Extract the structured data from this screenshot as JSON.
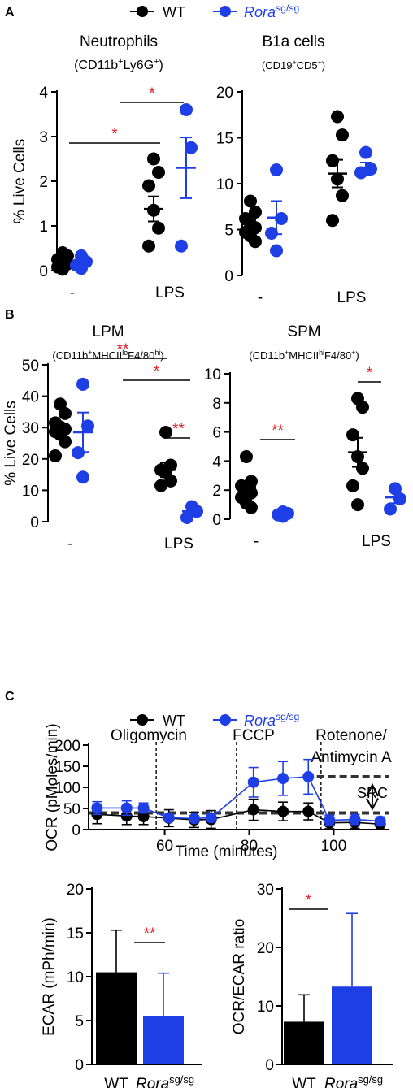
{
  "colors": {
    "wt": "#000000",
    "ko": "#1f3fe6",
    "sig": "#e8202a"
  },
  "legend": {
    "wt": "WT",
    "ko_base": "Rora",
    "ko_sup": "sg/sg"
  },
  "panels": {
    "A": "A",
    "B": "B",
    "C": "C"
  },
  "chart_data": [
    {
      "id": "neutrophils",
      "type": "scatter",
      "title": "Neutrophils",
      "subtitle": "(CD11b+Ly6G+)",
      "ylabel": "% Live Cells",
      "ylim": [
        0,
        4
      ],
      "yticks": [
        0,
        1,
        2,
        3,
        4
      ],
      "categories": [
        "-",
        "LPS"
      ],
      "series": [
        {
          "name": "WT",
          "points": [
            [
              0,
              0.4
            ],
            [
              0,
              0.33
            ],
            [
              0,
              0.25
            ],
            [
              0,
              0.2
            ],
            [
              0,
              0.15
            ],
            [
              0,
              0.08
            ],
            [
              0,
              0.03
            ],
            [
              1,
              2.5
            ],
            [
              1,
              2.2
            ],
            [
              1,
              1.9
            ],
            [
              1,
              1.35
            ],
            [
              1,
              0.95
            ],
            [
              1,
              0.55
            ]
          ],
          "mean": [
            0.2,
            1.38
          ],
          "sem": [
            0.05,
            0.28
          ]
        },
        {
          "name": "Rora sg/sg",
          "points": [
            [
              0,
              0.33
            ],
            [
              0,
              0.2
            ],
            [
              0,
              0.12
            ],
            [
              0,
              0.05
            ],
            [
              1,
              3.6
            ],
            [
              1,
              2.75
            ],
            [
              1,
              0.55
            ]
          ],
          "mean": [
            0.18,
            2.3
          ],
          "sem": [
            0.07,
            0.68
          ]
        }
      ],
      "sig": [
        {
          "label": "*",
          "from": "WT -",
          "to": "WT LPS"
        },
        {
          "label": "*",
          "from": "Rora sg/sg -",
          "to": "Rora sg/sg LPS"
        }
      ]
    },
    {
      "id": "b1a",
      "type": "scatter",
      "title": "B1a cells",
      "subtitle": "(CD19+CD5+)",
      "ylabel": "",
      "ylim": [
        0,
        20
      ],
      "yticks": [
        0,
        5,
        10,
        15,
        20
      ],
      "categories": [
        "-",
        "LPS"
      ],
      "series": [
        {
          "name": "WT",
          "points": [
            [
              0,
              8.1
            ],
            [
              0,
              6.9
            ],
            [
              0,
              6.2
            ],
            [
              0,
              5.6
            ],
            [
              0,
              5.2
            ],
            [
              0,
              4.7
            ],
            [
              0,
              4.3
            ],
            [
              0,
              3.7
            ],
            [
              1,
              17.3
            ],
            [
              1,
              15.3
            ],
            [
              1,
              12.5
            ],
            [
              1,
              10.5
            ],
            [
              1,
              8.7
            ],
            [
              1,
              6.0
            ]
          ],
          "mean": [
            5.6,
            11.1
          ],
          "sem": [
            0.5,
            1.5
          ]
        },
        {
          "name": "Rora sg/sg",
          "points": [
            [
              0,
              11.5
            ],
            [
              0,
              6.2
            ],
            [
              0,
              4.6
            ],
            [
              0,
              2.7
            ],
            [
              1,
              13.4
            ],
            [
              1,
              11.6
            ],
            [
              1,
              11.2
            ]
          ],
          "mean": [
            6.3,
            11.6
          ],
          "sem": [
            1.8,
            0.7
          ]
        }
      ],
      "sig": []
    },
    {
      "id": "lpm",
      "type": "scatter",
      "title": "LPM",
      "subtitle": "(CD11b+MHCIIloF4/80hi)",
      "ylabel": "% Live Cells",
      "ylim": [
        0,
        50
      ],
      "yticks": [
        0,
        10,
        20,
        30,
        40,
        50
      ],
      "categories": [
        "-",
        "LPS"
      ],
      "series": [
        {
          "name": "WT",
          "points": [
            [
              0,
              37.5
            ],
            [
              0,
              34.5
            ],
            [
              0,
              31.5
            ],
            [
              0,
              30.2
            ],
            [
              0,
              29.5
            ],
            [
              0,
              28.7
            ],
            [
              0,
              27.8
            ],
            [
              0,
              25.5
            ],
            [
              0,
              21.0
            ],
            [
              1,
              28.5
            ],
            [
              1,
              18.0
            ],
            [
              1,
              16.5
            ],
            [
              1,
              15.8
            ],
            [
              1,
              13.0
            ],
            [
              1,
              11.5
            ]
          ],
          "mean": [
            29.6,
            16.5
          ],
          "sem": [
            1.6,
            2.3
          ]
        },
        {
          "name": "Rora sg/sg",
          "points": [
            [
              0,
              43.8
            ],
            [
              0,
              30.5
            ],
            [
              0,
              22.0
            ],
            [
              0,
              14.2
            ],
            [
              1,
              4.8
            ],
            [
              1,
              3.3
            ],
            [
              1,
              1.3
            ]
          ],
          "mean": [
            28.5,
            3.3
          ],
          "sem": [
            6.3,
            1.0
          ]
        }
      ],
      "sig": [
        {
          "label": "**",
          "from": "WT -",
          "to": "WT LPS"
        },
        {
          "label": "*",
          "from": "Rora sg/sg -",
          "to": "WT LPS"
        },
        {
          "label": "**",
          "from": "WT LPS",
          "to": "Rora sg/sg LPS"
        }
      ]
    },
    {
      "id": "spm",
      "type": "scatter",
      "title": "SPM",
      "subtitle": "(CD11b+MHCIIhiF4/80+)",
      "ylabel": "",
      "ylim": [
        0,
        10
      ],
      "yticks": [
        0,
        2,
        4,
        6,
        8,
        10
      ],
      "categories": [
        "-",
        "LPS"
      ],
      "series": [
        {
          "name": "WT",
          "points": [
            [
              0,
              4.3
            ],
            [
              0,
              2.6
            ],
            [
              0,
              2.3
            ],
            [
              0,
              2.1
            ],
            [
              0,
              1.8
            ],
            [
              0,
              1.5
            ],
            [
              0,
              1.1
            ],
            [
              0,
              0.8
            ],
            [
              1,
              8.3
            ],
            [
              1,
              7.7
            ],
            [
              1,
              5.8
            ],
            [
              1,
              4.3
            ],
            [
              1,
              3.5
            ],
            [
              1,
              2.3
            ],
            [
              1,
              1.0
            ]
          ],
          "mean": [
            2.2,
            4.6
          ],
          "sem": [
            0.35,
            1.0
          ]
        },
        {
          "name": "Rora sg/sg",
          "points": [
            [
              0,
              0.5
            ],
            [
              0,
              0.4
            ],
            [
              0,
              0.3
            ],
            [
              0,
              0.2
            ],
            [
              1,
              2.1
            ],
            [
              1,
              1.4
            ],
            [
              1,
              0.7
            ]
          ],
          "mean": [
            0.4,
            1.5
          ],
          "sem": [
            0.1,
            0.4
          ]
        }
      ],
      "sig": [
        {
          "label": "**",
          "from": "WT -",
          "to": "Rora sg/sg -"
        },
        {
          "label": "*",
          "from": "WT LPS",
          "to": "Rora sg/sg LPS"
        }
      ]
    },
    {
      "id": "ocr",
      "type": "line",
      "xlabel": "Time (minutes)",
      "ylabel": "OCR (pMoles/min)",
      "xlim": [
        42,
        113
      ],
      "ylim": [
        0,
        200
      ],
      "xticks": [
        60,
        80,
        100
      ],
      "yticks": [
        0,
        50,
        100,
        150,
        200
      ],
      "x": [
        44,
        51,
        55,
        61,
        67,
        71,
        81,
        88,
        94,
        99,
        105,
        111
      ],
      "series": [
        {
          "name": "WT",
          "values": [
            36,
            32,
            31,
            27,
            23,
            24,
            47,
            43,
            43,
            16,
            17,
            13
          ],
          "err": [
            22,
            20,
            19,
            20,
            18,
            21,
            25,
            22,
            20,
            14,
            14,
            12
          ]
        },
        {
          "name": "Rora sg/sg",
          "values": [
            51,
            51,
            51,
            28,
            26,
            28,
            112,
            121,
            125,
            22,
            24,
            20
          ],
          "err": [
            15,
            17,
            12,
            8,
            7,
            8,
            35,
            40,
            41,
            12,
            12,
            10
          ]
        }
      ],
      "injections": [
        {
          "x": 58,
          "label": "Oligomycin"
        },
        {
          "x": 77,
          "label": "FCCP"
        },
        {
          "x": 97,
          "label": "Rotenone/",
          "label2": "Antimycin A"
        }
      ],
      "basal_level": 51,
      "max_level": 125,
      "src_label": "SRC"
    },
    {
      "id": "ecar",
      "type": "bar",
      "ylabel": "ECAR (mPh/min)",
      "ylim": [
        0,
        20
      ],
      "yticks": [
        0,
        5,
        10,
        15,
        20
      ],
      "categories": [
        "WT",
        "Rora sg/sg"
      ],
      "values": [
        10.5,
        5.5
      ],
      "err": [
        4.8,
        4.9
      ],
      "sig": [
        {
          "label": "**"
        }
      ]
    },
    {
      "id": "ratio",
      "type": "bar",
      "ylabel": "OCR/ECAR ratio",
      "ylim": [
        0,
        30
      ],
      "yticks": [
        0,
        10,
        20,
        30
      ],
      "categories": [
        "WT",
        "Rora sg/sg"
      ],
      "values": [
        7.3,
        13.3
      ],
      "err": [
        4.6,
        12.5
      ],
      "sig": [
        {
          "label": "*"
        }
      ]
    }
  ]
}
